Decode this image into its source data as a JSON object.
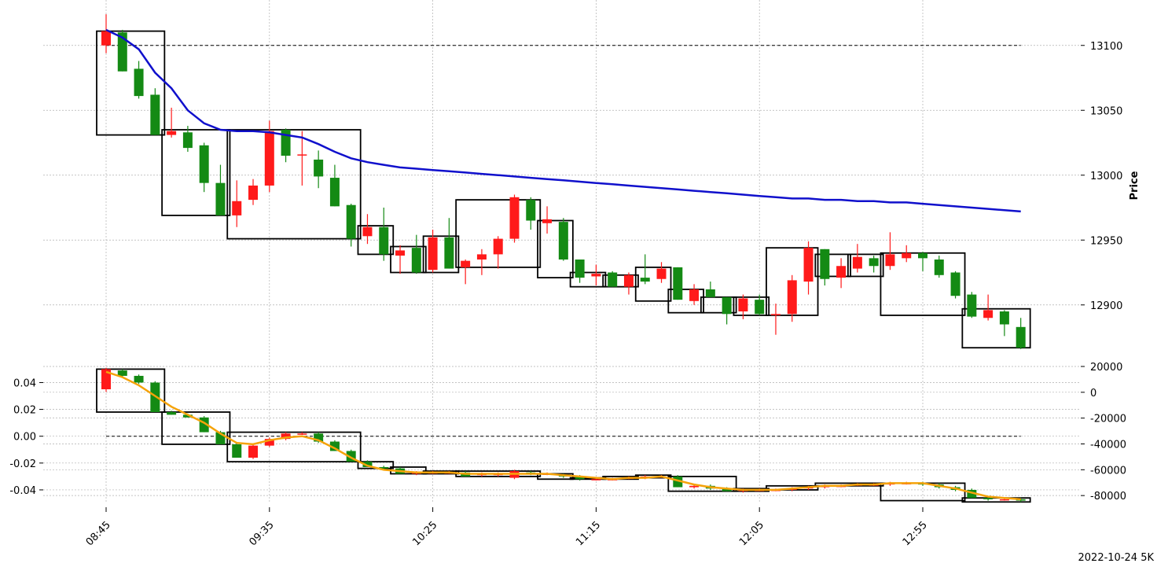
{
  "chart_data": [
    {
      "type": "candlestick",
      "panel": "price",
      "ylabel": "Price",
      "ylim": [
        12855,
        13135
      ],
      "ytick_labels": [
        "12900",
        "12950",
        "13000",
        "13050",
        "13100"
      ],
      "yaxis_side": "right",
      "reference_line": 13100,
      "up_color": "#ff1a1a",
      "down_color": "#148a14",
      "candles": [
        [
          13100,
          13111,
          13094,
          13124
        ],
        [
          13110,
          13080,
          13080,
          13112
        ],
        [
          13082,
          13061,
          13059,
          13088
        ],
        [
          13062,
          13031,
          13031,
          13067
        ],
        [
          13031,
          13034,
          13029,
          13052
        ],
        [
          13033,
          13021,
          13018,
          13038
        ],
        [
          13023,
          12994,
          12987,
          13025
        ],
        [
          12994,
          12969,
          12969,
          13008
        ],
        [
          12969,
          12980,
          12960,
          12996
        ],
        [
          12981,
          12992,
          12977,
          12997
        ],
        [
          12992,
          13034,
          12987,
          13042
        ],
        [
          13035,
          13015,
          13010,
          13036
        ],
        [
          13016,
          13016,
          12992,
          13034
        ],
        [
          13012,
          12999,
          12990,
          13019
        ],
        [
          12998,
          12976,
          12976,
          13008
        ],
        [
          12977,
          12951,
          12945,
          12978
        ],
        [
          12953,
          12960,
          12947,
          12970
        ],
        [
          12960,
          12939,
          12934,
          12975
        ],
        [
          12938,
          12942,
          12924,
          12946
        ],
        [
          12944,
          12925,
          12924,
          12954
        ],
        [
          12927,
          12952,
          12925,
          12958
        ],
        [
          12952,
          12928,
          12928,
          12967
        ],
        [
          12929,
          12934,
          12916,
          12935
        ],
        [
          12935,
          12939,
          12923,
          12943
        ],
        [
          12939,
          12951,
          12928,
          12953
        ],
        [
          12951,
          12983,
          12948,
          12985
        ],
        [
          12981,
          12965,
          12958,
          12983
        ],
        [
          12963,
          12966,
          12955,
          12976
        ],
        [
          12964,
          12935,
          12934,
          12967
        ],
        [
          12935,
          12921,
          12917,
          12935
        ],
        [
          12922,
          12924,
          12915,
          12931
        ],
        [
          12925,
          12914,
          12914,
          12926
        ],
        [
          12914,
          12923,
          12908,
          12925
        ],
        [
          12921,
          12918,
          12916,
          12939
        ],
        [
          12920,
          12928,
          12917,
          12933
        ],
        [
          12929,
          12904,
          12904,
          12929
        ],
        [
          12903,
          12912,
          12900,
          12916
        ],
        [
          12912,
          12906,
          12906,
          12918
        ],
        [
          12906,
          12893,
          12885,
          12906
        ],
        [
          12895,
          12905,
          12889,
          12908
        ],
        [
          12904,
          12893,
          12892,
          12908
        ],
        [
          12893,
          12893,
          12877,
          12901
        ],
        [
          12893,
          12919,
          12887,
          12923
        ],
        [
          12918,
          12944,
          12908,
          12949
        ],
        [
          12943,
          12920,
          12915,
          12943
        ],
        [
          12921,
          12930,
          12913,
          12936
        ],
        [
          12928,
          12937,
          12925,
          12947
        ],
        [
          12936,
          12930,
          12925,
          12938
        ],
        [
          12930,
          12939,
          12927,
          12956
        ],
        [
          12936,
          12940,
          12933,
          12946
        ],
        [
          12940,
          12936,
          12926,
          12941
        ],
        [
          12935,
          12923,
          12921,
          12938
        ],
        [
          12925,
          12907,
          12905,
          12926
        ],
        [
          12908,
          12891,
          12890,
          12910
        ],
        [
          12890,
          12896,
          12888,
          12908
        ],
        [
          12895,
          12885,
          12876,
          12896
        ],
        [
          12883,
          12867,
          12866,
          12890
        ]
      ],
      "moving_average": {
        "color": "#1010cc",
        "values": [
          13112,
          13106,
          13097,
          13079,
          13067,
          13050,
          13040,
          13035,
          13034,
          13034,
          13033,
          13031,
          13029,
          13024,
          13018,
          13013,
          13010,
          13008,
          13006,
          13005,
          13004,
          13003,
          13002,
          13001,
          13000,
          12999,
          12998,
          12997,
          12996,
          12995,
          12994,
          12993,
          12992,
          12991,
          12990,
          12989,
          12988,
          12987,
          12986,
          12985,
          12984,
          12983,
          12982,
          12982,
          12981,
          12981,
          12980,
          12980,
          12979,
          12979,
          12978,
          12977,
          12976,
          12975,
          12974,
          12973,
          12972
        ]
      },
      "pivot_boxes": [
        [
          0,
          3,
          13031,
          13111
        ],
        [
          4,
          7,
          12969,
          13035
        ],
        [
          8,
          15,
          12951,
          13035
        ],
        [
          16,
          17,
          12939,
          12961
        ],
        [
          18,
          19,
          12925,
          12945
        ],
        [
          20,
          21,
          12925,
          12953
        ],
        [
          22,
          26,
          12929,
          12981
        ],
        [
          27,
          28,
          12921,
          12965
        ],
        [
          29,
          30,
          12914,
          12925
        ],
        [
          31,
          32,
          12914,
          12923
        ],
        [
          33,
          34,
          12903,
          12929
        ],
        [
          35,
          36,
          12894,
          12912
        ],
        [
          37,
          38,
          12894,
          12906
        ],
        [
          39,
          40,
          12892,
          12906
        ],
        [
          41,
          43,
          12892,
          12944
        ],
        [
          44,
          45,
          12922,
          12939
        ],
        [
          46,
          47,
          12922,
          12939
        ],
        [
          48,
          52,
          12892,
          12940
        ],
        [
          53,
          56,
          12867,
          12897
        ]
      ]
    },
    {
      "type": "candlestick",
      "panel": "indicator",
      "ylim_left": [
        -0.05,
        0.052
      ],
      "ytick_labels_left": [
        "0.04",
        "0.02",
        "0.00",
        "-0.02",
        "-0.04"
      ],
      "ylim_right": [
        -86000,
        20000
      ],
      "ytick_labels_right": [
        "20000",
        "0",
        "-20000",
        "-40000",
        "-60000",
        "-80000"
      ],
      "reference_line": 0.0,
      "line_color": "#f5a30a",
      "candles": [
        [
          0.035,
          0.05,
          0.033,
          0.051
        ],
        [
          0.049,
          0.045,
          0.044,
          0.05
        ],
        [
          0.045,
          0.04,
          0.039,
          0.046
        ],
        [
          0.04,
          0.018,
          0.018,
          0.041
        ],
        [
          0.018,
          0.016,
          0.016,
          0.019
        ],
        [
          0.016,
          0.014,
          0.014,
          0.017
        ],
        [
          0.014,
          0.003,
          0.003,
          0.015
        ],
        [
          0.003,
          -0.006,
          -0.006,
          0.004
        ],
        [
          -0.006,
          -0.016,
          -0.016,
          -0.005
        ],
        [
          -0.016,
          -0.007,
          -0.017,
          -0.006
        ],
        [
          -0.007,
          -0.002,
          -0.008,
          -0.001
        ],
        [
          -0.002,
          0.002,
          -0.003,
          0.003
        ],
        [
          0.002,
          0.002,
          0.001,
          0.003
        ],
        [
          0.002,
          -0.004,
          -0.005,
          0.003
        ],
        [
          -0.004,
          -0.011,
          -0.011,
          -0.003
        ],
        [
          -0.011,
          -0.019,
          -0.019,
          -0.01
        ],
        [
          -0.019,
          -0.023,
          -0.023,
          -0.018
        ],
        [
          -0.023,
          -0.024,
          -0.025,
          -0.022
        ],
        [
          -0.024,
          -0.028,
          -0.028,
          -0.023
        ],
        [
          -0.028,
          -0.027,
          -0.029,
          -0.026
        ],
        [
          -0.027,
          -0.027,
          -0.028,
          -0.026
        ],
        [
          -0.027,
          -0.027,
          -0.028,
          -0.026
        ],
        [
          -0.027,
          -0.03,
          -0.03,
          -0.026
        ],
        [
          -0.029,
          -0.028,
          -0.03,
          -0.027
        ],
        [
          -0.029,
          -0.028,
          -0.03,
          -0.027
        ],
        [
          -0.031,
          -0.026,
          -0.032,
          -0.025
        ],
        [
          -0.027,
          -0.028,
          -0.029,
          -0.026
        ],
        [
          -0.028,
          -0.028,
          -0.029,
          -0.027
        ],
        [
          -0.029,
          -0.03,
          -0.031,
          -0.028
        ],
        [
          -0.03,
          -0.032,
          -0.033,
          -0.029
        ],
        [
          -0.032,
          -0.032,
          -0.033,
          -0.031
        ],
        [
          -0.032,
          -0.032,
          -0.033,
          -0.031
        ],
        [
          -0.031,
          -0.031,
          -0.032,
          -0.03
        ],
        [
          -0.031,
          -0.03,
          -0.032,
          -0.029
        ],
        [
          -0.03,
          -0.03,
          -0.031,
          -0.029
        ],
        [
          -0.03,
          -0.038,
          -0.038,
          -0.029
        ],
        [
          -0.038,
          -0.037,
          -0.039,
          -0.036
        ],
        [
          -0.037,
          -0.039,
          -0.04,
          -0.036
        ],
        [
          -0.039,
          -0.041,
          -0.041,
          -0.038
        ],
        [
          -0.04,
          -0.04,
          -0.042,
          -0.039
        ],
        [
          -0.04,
          -0.04,
          -0.041,
          -0.039
        ],
        [
          -0.04,
          -0.04,
          -0.041,
          -0.039
        ],
        [
          -0.04,
          -0.039,
          -0.041,
          -0.038
        ],
        [
          -0.039,
          -0.038,
          -0.04,
          -0.037
        ],
        [
          -0.038,
          -0.037,
          -0.039,
          -0.036
        ],
        [
          -0.037,
          -0.037,
          -0.038,
          -0.036
        ],
        [
          -0.036,
          -0.036,
          -0.037,
          -0.035
        ],
        [
          -0.036,
          -0.036,
          -0.037,
          -0.035
        ],
        [
          -0.036,
          -0.035,
          -0.037,
          -0.034
        ],
        [
          -0.035,
          -0.035,
          -0.036,
          -0.034
        ],
        [
          -0.035,
          -0.036,
          -0.037,
          -0.034
        ],
        [
          -0.036,
          -0.038,
          -0.039,
          -0.035
        ],
        [
          -0.038,
          -0.04,
          -0.041,
          -0.037
        ],
        [
          -0.04,
          -0.046,
          -0.046,
          -0.039
        ],
        [
          -0.046,
          -0.047,
          -0.048,
          -0.045
        ],
        [
          -0.047,
          -0.047,
          -0.048,
          -0.046
        ],
        [
          -0.047,
          -0.048,
          -0.049,
          -0.046
        ]
      ],
      "line_values": [
        0.048,
        0.044,
        0.038,
        0.03,
        0.022,
        0.016,
        0.01,
        0.002,
        -0.005,
        -0.006,
        -0.003,
        -0.001,
        0.0,
        -0.003,
        -0.009,
        -0.016,
        -0.022,
        -0.025,
        -0.026,
        -0.027,
        -0.027,
        -0.027,
        -0.028,
        -0.028,
        -0.028,
        -0.028,
        -0.028,
        -0.028,
        -0.029,
        -0.03,
        -0.031,
        -0.032,
        -0.031,
        -0.031,
        -0.03,
        -0.033,
        -0.036,
        -0.038,
        -0.039,
        -0.04,
        -0.04,
        -0.04,
        -0.039,
        -0.038,
        -0.037,
        -0.037,
        -0.036,
        -0.036,
        -0.035,
        -0.035,
        -0.035,
        -0.037,
        -0.039,
        -0.042,
        -0.045,
        -0.046,
        -0.047
      ],
      "pivot_boxes": [
        [
          0,
          3,
          0.018,
          0.05
        ],
        [
          4,
          7,
          -0.006,
          0.018
        ],
        [
          8,
          15,
          -0.019,
          0.003
        ],
        [
          16,
          17,
          -0.024,
          -0.019
        ],
        [
          18,
          19,
          -0.028,
          -0.023
        ],
        [
          20,
          21,
          -0.028,
          -0.026
        ],
        [
          22,
          26,
          -0.03,
          -0.026
        ],
        [
          27,
          28,
          -0.032,
          -0.028
        ],
        [
          29,
          30,
          -0.032,
          -0.031
        ],
        [
          31,
          32,
          -0.032,
          -0.03
        ],
        [
          33,
          34,
          -0.031,
          -0.029
        ],
        [
          35,
          38,
          -0.041,
          -0.03
        ],
        [
          39,
          40,
          -0.041,
          -0.039
        ],
        [
          41,
          43,
          -0.04,
          -0.037
        ],
        [
          44,
          47,
          -0.037,
          -0.035
        ],
        [
          48,
          52,
          -0.048,
          -0.035
        ],
        [
          53,
          56,
          -0.049,
          -0.046
        ]
      ]
    }
  ],
  "xaxis": {
    "tick_labels": [
      "08:45",
      "09:35",
      "10:25",
      "11:15",
      "12:05",
      "12:55"
    ],
    "tick_indices": [
      0,
      10,
      20,
      30,
      40,
      50
    ]
  },
  "footer_label": "2022-10-24 5K"
}
